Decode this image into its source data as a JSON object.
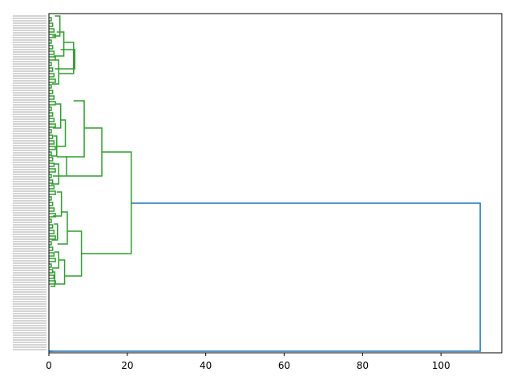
{
  "chart_data": {
    "type": "dendrogram",
    "orientation": "right",
    "title": "",
    "xlabel": "",
    "ylabel": "",
    "xlim": [
      0,
      115.5
    ],
    "x_ticks": [
      0,
      20,
      40,
      60,
      80,
      100
    ],
    "x_tick_labels": [
      "0",
      "20",
      "40",
      "60",
      "80",
      "100"
    ],
    "colors": {
      "top_link": "#1f77b4",
      "cluster": "#2ca02c",
      "axes": "#000000"
    },
    "merges": [
      {
        "cluster": "A",
        "height": 110.0,
        "children": [
          "B",
          "C"
        ],
        "color": "#1f77b4"
      },
      {
        "cluster": "B",
        "height": 21.0,
        "children": [
          "D",
          "E"
        ],
        "color": "#2ca02c"
      },
      {
        "cluster": "D",
        "height": 13.5,
        "children": [
          "F",
          "G"
        ],
        "color": "#2ca02c"
      },
      {
        "cluster": "E",
        "height": 8.3,
        "children": [
          "H",
          "I"
        ],
        "color": "#2ca02c"
      },
      {
        "cluster": "F",
        "height": 9.0,
        "children": [
          "J",
          "K"
        ],
        "color": "#2ca02c"
      },
      {
        "cluster": "G",
        "height": 4.5,
        "children": [
          "L",
          "M"
        ],
        "color": "#2ca02c"
      }
    ],
    "leaf_label_note": ""
  }
}
